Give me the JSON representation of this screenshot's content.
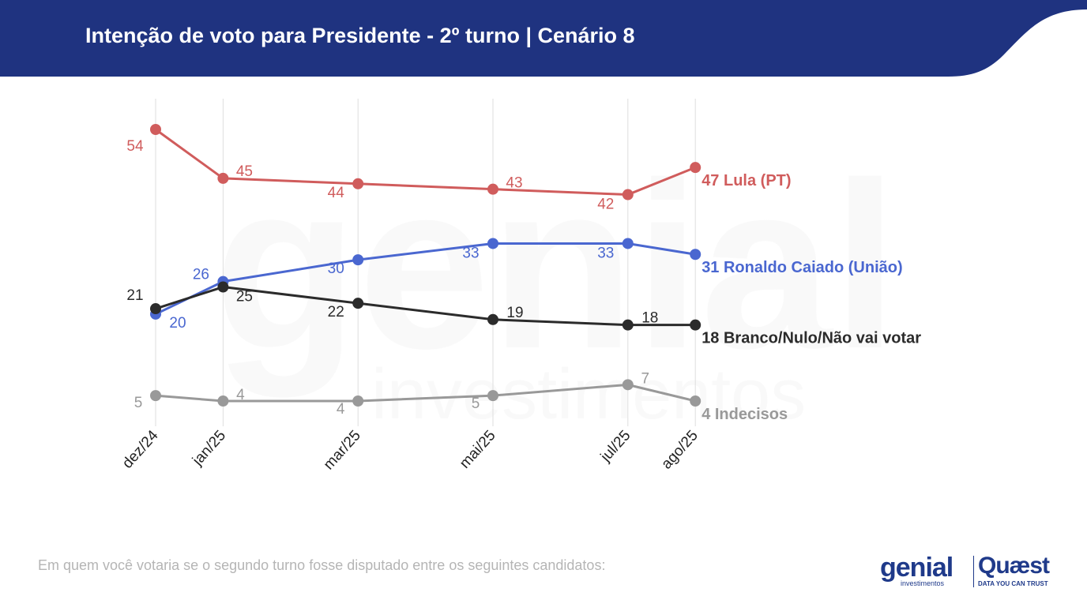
{
  "header": {
    "title": "Intenção de voto para Presidente - 2º turno | Cenário 8",
    "background_color": "#1f3380"
  },
  "watermark": {
    "brand": "genial",
    "sub": "investimentos"
  },
  "chart_data": {
    "type": "line",
    "title": "Intenção de voto para Presidente - 2º turno | Cenário 8",
    "xlabel": "",
    "ylabel": "",
    "x": [
      "dez/24",
      "jan/25",
      "mar/25",
      "mai/25",
      "jul/25",
      "ago/25"
    ],
    "x_months": [
      0,
      1,
      3,
      5,
      7,
      8
    ],
    "ylim": [
      0,
      60
    ],
    "grid": "vertical",
    "legend": "none",
    "series": [
      {
        "name": "Lula (PT)",
        "color": "#d05c5c",
        "values": [
          54,
          45,
          44,
          43,
          42,
          47
        ],
        "end_label": "47 Lula (PT)"
      },
      {
        "name": "Ronaldo Caiado (União)",
        "color": "#4a67d0",
        "values": [
          20,
          26,
          30,
          33,
          33,
          31
        ],
        "end_label": "31 Ronaldo Caiado (União)"
      },
      {
        "name": "Branco/Nulo/Não vai votar",
        "color": "#2b2b2b",
        "values": [
          21,
          25,
          22,
          19,
          18,
          18
        ],
        "end_label": "18 Branco/Nulo/Não vai votar"
      },
      {
        "name": "Indecisos",
        "color": "#999999",
        "values": [
          5,
          4,
          4,
          5,
          7,
          4
        ],
        "end_label": "4 Indecisos"
      }
    ]
  },
  "footer": {
    "question": "Em quem você votaria se o segundo turno fosse disputado entre os seguintes candidatos:"
  },
  "logos": {
    "genial": "genial",
    "genial_sub": "investimentos",
    "quaest": "Quæst",
    "quaest_tagline": "DATA YOU CAN TRUST",
    "brand_color": "#1f3a8a"
  }
}
